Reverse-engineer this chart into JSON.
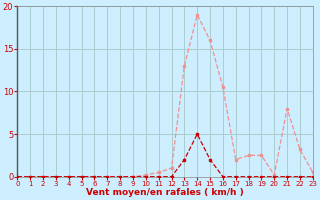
{
  "xlabel": "Vent moyen/en rafales ( km/h )",
  "bg_color": "#cceeff",
  "grid_color": "#aacccc",
  "x_ticks": [
    0,
    1,
    2,
    3,
    4,
    5,
    6,
    7,
    8,
    9,
    10,
    11,
    12,
    13,
    14,
    15,
    16,
    17,
    18,
    19,
    20,
    21,
    22,
    23
  ],
  "ylim": [
    0,
    20
  ],
  "xlim": [
    0,
    23
  ],
  "yticks": [
    0,
    5,
    10,
    15,
    20
  ],
  "line_moyen_x": [
    0,
    1,
    2,
    3,
    4,
    5,
    6,
    7,
    8,
    9,
    10,
    11,
    12,
    13,
    14,
    15,
    16,
    17,
    18,
    19,
    20,
    21,
    22,
    23
  ],
  "line_moyen_y": [
    0,
    0,
    0,
    0,
    0,
    0,
    0,
    0,
    0,
    0,
    0,
    0,
    0,
    2,
    5,
    2,
    0,
    0,
    0,
    0,
    0,
    0,
    0,
    0
  ],
  "line_rafales_x": [
    0,
    1,
    2,
    3,
    4,
    5,
    6,
    7,
    8,
    9,
    10,
    11,
    12,
    13,
    14,
    15,
    16,
    17,
    18,
    19,
    20,
    21,
    22,
    23
  ],
  "line_rafales_y": [
    0,
    0,
    0,
    0,
    0,
    0,
    0,
    0,
    0,
    0,
    0.2,
    0.5,
    1.0,
    13,
    19,
    16,
    10.5,
    2,
    2.5,
    2.5,
    0.2,
    8,
    3.2,
    0.5
  ],
  "line_moyen_color": "#cc0000",
  "line_rafales_color": "#f09090",
  "tick_color": "#cc0000",
  "xlabel_color": "#cc0000",
  "spine_color": "#888888"
}
